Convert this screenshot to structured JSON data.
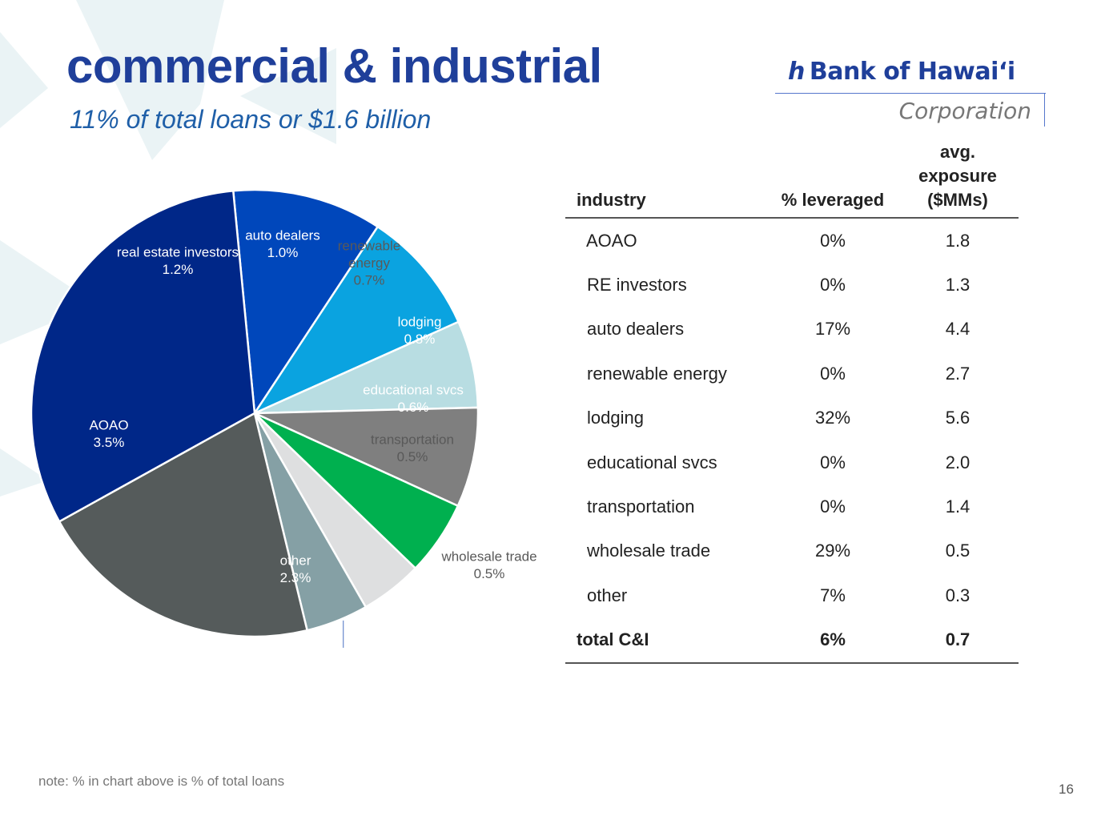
{
  "header": {
    "title": "commercial & industrial",
    "subtitle": "11% of total loans or $1.6 billion"
  },
  "logo": {
    "mark": "h",
    "name": "Bank of Hawai‘i",
    "subline": "Corporation"
  },
  "chart_data": {
    "type": "pie",
    "unit": "% of total loans",
    "slices": [
      {
        "name": "real estate investors",
        "value": 1.2,
        "label": "1.2%",
        "color": "#0047BB"
      },
      {
        "name": "auto dealers",
        "value": 1.0,
        "label": "1.0%",
        "color": "#0AA3E0"
      },
      {
        "name": "renewable energy",
        "value": 0.7,
        "label": "0.7%",
        "color": "#B8DDE2"
      },
      {
        "name": "lodging",
        "value": 0.8,
        "label": "0.8%",
        "color": "#7F7F7F"
      },
      {
        "name": "educational svcs",
        "value": 0.6,
        "label": "0.6%",
        "color": "#00B04F"
      },
      {
        "name": "transportation",
        "value": 0.5,
        "label": "0.5%",
        "color": "#DEDFE0"
      },
      {
        "name": "wholesale trade",
        "value": 0.5,
        "label": "0.5%",
        "color": "#85A0A5"
      },
      {
        "name": "other",
        "value": 2.3,
        "label": "2.3%",
        "color": "#555B5B"
      },
      {
        "name": "AOAO",
        "value": 3.5,
        "label": "3.5%",
        "color": "#002788"
      }
    ]
  },
  "table": {
    "headers": {
      "industry": "industry",
      "leveraged": "% leveraged",
      "exposure": [
        "avg.",
        "exposure",
        "($MMs)"
      ]
    },
    "rows": [
      {
        "industry": "AOAO",
        "leveraged": "0%",
        "exposure": "1.8"
      },
      {
        "industry": "RE investors",
        "leveraged": "0%",
        "exposure": "1.3"
      },
      {
        "industry": "auto dealers",
        "leveraged": "17%",
        "exposure": "4.4"
      },
      {
        "industry": "renewable energy",
        "leveraged": "0%",
        "exposure": "2.7"
      },
      {
        "industry": "lodging",
        "leveraged": "32%",
        "exposure": "5.6"
      },
      {
        "industry": "educational svcs",
        "leveraged": "0%",
        "exposure": "2.0"
      },
      {
        "industry": "transportation",
        "leveraged": "0%",
        "exposure": "1.4"
      },
      {
        "industry": "wholesale trade",
        "leveraged": "29%",
        "exposure": "0.5"
      },
      {
        "industry": "other",
        "leveraged": "7%",
        "exposure": "0.3"
      }
    ],
    "total": {
      "industry": "total C&I",
      "leveraged": "6%",
      "exposure": "0.7"
    }
  },
  "footnote": "note: % in chart above is % of total loans",
  "page_number": "16"
}
